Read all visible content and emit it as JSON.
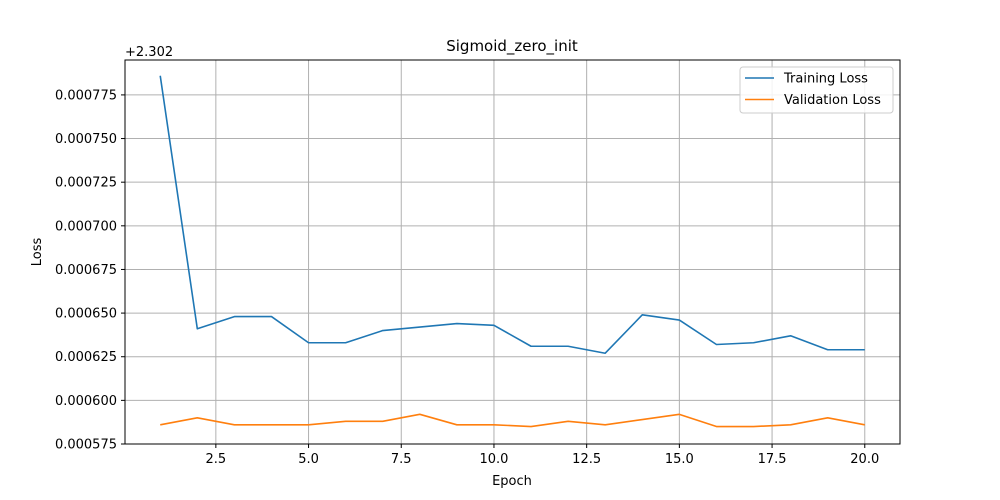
{
  "chart_data": {
    "type": "line",
    "title": "Sigmoid_zero_init",
    "xlabel": "Epoch",
    "ylabel": "Loss",
    "y_offset_label": "+2.302",
    "xlim": [
      0.05,
      20.95
    ],
    "ylim": [
      0.000575,
      0.000795
    ],
    "x_ticks": [
      "2.5",
      "5.0",
      "7.5",
      "10.0",
      "12.5",
      "15.0",
      "17.5",
      "20.0"
    ],
    "y_ticks": [
      "0.000575",
      "0.000600",
      "0.000625",
      "0.000650",
      "0.000675",
      "0.000700",
      "0.000725",
      "0.000750",
      "0.000775"
    ],
    "grid": true,
    "legend_position": "top-right",
    "x": [
      1,
      2,
      3,
      4,
      5,
      6,
      7,
      8,
      9,
      10,
      11,
      12,
      13,
      14,
      15,
      16,
      17,
      18,
      19,
      20
    ],
    "series": [
      {
        "name": "Training Loss",
        "color": "#1f77b4",
        "values": [
          0.000786,
          0.000641,
          0.000648,
          0.000648,
          0.000633,
          0.000633,
          0.00064,
          0.000642,
          0.000644,
          0.000643,
          0.000631,
          0.000631,
          0.000627,
          0.000649,
          0.000646,
          0.000632,
          0.000633,
          0.000637,
          0.000629,
          0.000629
        ]
      },
      {
        "name": "Validation Loss",
        "color": "#ff7f0e",
        "values": [
          0.000586,
          0.00059,
          0.000586,
          0.000586,
          0.000586,
          0.000588,
          0.000588,
          0.000592,
          0.000586,
          0.000586,
          0.000585,
          0.000588,
          0.000586,
          0.000589,
          0.000592,
          0.000585,
          0.000585,
          0.000586,
          0.00059,
          0.000586
        ]
      }
    ]
  }
}
